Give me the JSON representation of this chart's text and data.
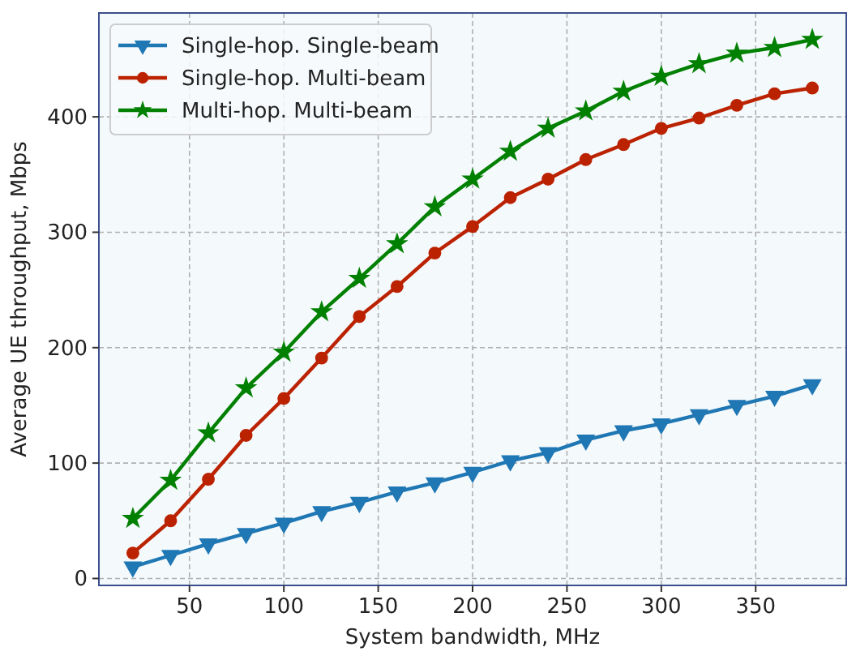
{
  "chart_data": {
    "type": "line",
    "xlabel": "System bandwidth, MHz",
    "ylabel": "Average UE throughput, Mbps",
    "x": [
      20,
      40,
      60,
      80,
      100,
      120,
      140,
      160,
      180,
      200,
      220,
      240,
      260,
      280,
      300,
      320,
      340,
      360,
      380
    ],
    "series": [
      {
        "name": "Single-hop. Single-beam",
        "color": "#1f77b4",
        "marker": "triangle",
        "values": [
          10,
          20,
          30,
          39,
          48,
          58,
          66,
          75,
          83,
          92,
          102,
          109,
          120,
          128,
          134,
          142,
          150,
          158,
          168
        ]
      },
      {
        "name": "Single-hop. Multi-beam",
        "color": "#bb2200",
        "marker": "circle",
        "values": [
          22,
          50,
          86,
          124,
          156,
          191,
          227,
          253,
          282,
          305,
          330,
          346,
          363,
          376,
          390,
          399,
          410,
          420,
          425
        ]
      },
      {
        "name": "Multi-hop. Multi-beam",
        "color": "#008000",
        "marker": "star",
        "values": [
          52,
          85,
          126,
          165,
          196,
          231,
          260,
          290,
          322,
          346,
          370,
          390,
          405,
          422,
          435,
          446,
          455,
          460,
          467
        ]
      }
    ],
    "xlim": [
      2,
      398
    ],
    "ylim": [
      -6,
      490
    ],
    "xticks": [
      50,
      100,
      150,
      200,
      250,
      300,
      350
    ],
    "yticks": [
      0,
      100,
      200,
      300,
      400
    ],
    "grid": true,
    "legend": "top left",
    "line_style": "solid"
  }
}
